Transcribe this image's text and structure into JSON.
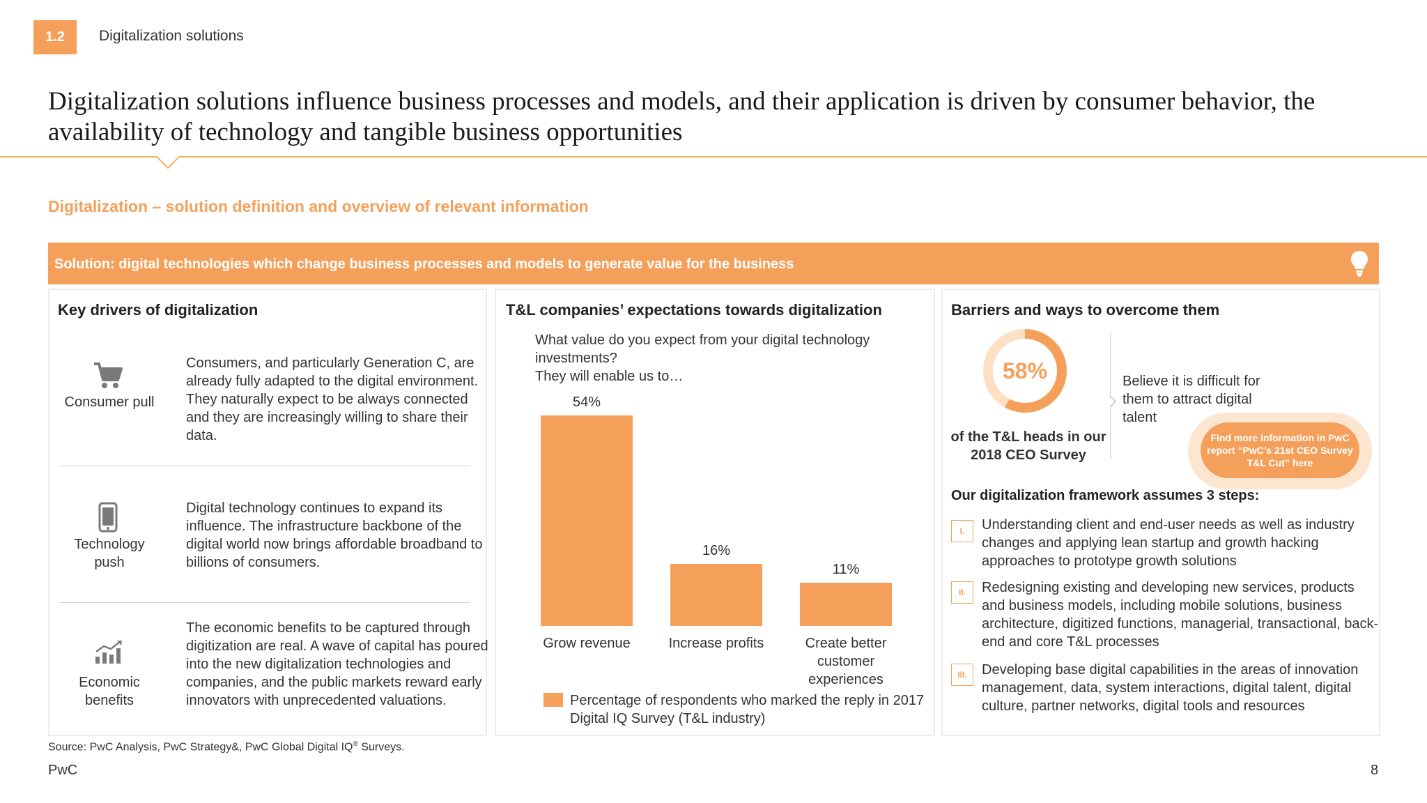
{
  "header": {
    "section_number": "1.2",
    "section_name": "Digitalization solutions",
    "headline": "Digitalization solutions influence business processes and models, and their application is driven by consumer behavior, the availability of technology and tangible business opportunities"
  },
  "subhead": "Digitalization – solution definition and overview of relevant information",
  "banner": {
    "text": "Solution: digital technologies which change business processes and models to generate value for the business",
    "icon": "lightbulb-icon"
  },
  "drivers": {
    "title": "Key drivers of digitalization",
    "items": [
      {
        "icon": "shopping-cart-icon",
        "label": "Consumer pull",
        "text": "Consumers, and particularly Generation C, are already fully adapted to the digital environment. They naturally expect to be always connected and they are increasingly willing to share their data."
      },
      {
        "icon": "smartphone-icon",
        "label": "Technology push",
        "text": "Digital technology continues to expand its influence. The infrastructure backbone of the digital world now brings affordable broadband to billions of consumers."
      },
      {
        "icon": "growth-chart-icon",
        "label": "Economic benefits",
        "text": "The economic benefits to be captured through digitization are real. A wave of capital has poured into the new digitalization technologies and companies, and the public markets reward early innovators with unprecedented valuations."
      }
    ]
  },
  "expectations": {
    "title": "T&L companies’ expectations towards digitalization",
    "question": "What value do you expect from your digital technology investments?",
    "question_line2": "They will enable us to…"
  },
  "chart_data": {
    "type": "bar",
    "categories": [
      "Grow revenue",
      "Increase profits",
      "Create better customer experiences"
    ],
    "values": [
      54,
      16,
      11
    ],
    "value_labels": [
      "54%",
      "16%",
      "11%"
    ],
    "legend": "Percentage of respondents  who marked the reply in 2017 Digital IQ Survey (T&L industry)",
    "color": "#f5a05a",
    "ylim": [
      0,
      54
    ]
  },
  "barriers": {
    "title": "Barriers and ways to overcome them",
    "percent_value": 58,
    "percent_label": "58%",
    "percent_caption": "of the T&L heads in our 2018 CEO Survey",
    "statement": "Believe it is difficult for them to attract digital talent",
    "cta": "Find more information in PwC report “PwC’s 21st CEO Survey T&L Cut” here",
    "steps_title": "Our digitalization framework assumes 3 steps:",
    "steps": [
      {
        "num": "I.",
        "text": "Understanding client and end-user needs as well as industry changes and applying lean startup and growth hacking approaches to prototype growth solutions"
      },
      {
        "num": "II.",
        "text": "Redesigning existing and developing new services, products and business models, including mobile solutions, business architecture, digitized functions, managerial, transactional, back-end and core T&L processes"
      },
      {
        "num": "III.",
        "text": "Developing base digital capabilities in the areas of innovation management, data, system interactions, digital talent, digital culture, partner networks, digital tools and resources"
      }
    ]
  },
  "footer": {
    "source_prefix": "Source: PwC Analysis, PwC Strategy&, PwC Global Digital IQ",
    "source_mark": "®",
    "source_suffix": " Surveys.",
    "brand": "PwC",
    "page_number": "8"
  },
  "colors": {
    "accent": "#f5a05a",
    "rule": "#f0b25c"
  }
}
